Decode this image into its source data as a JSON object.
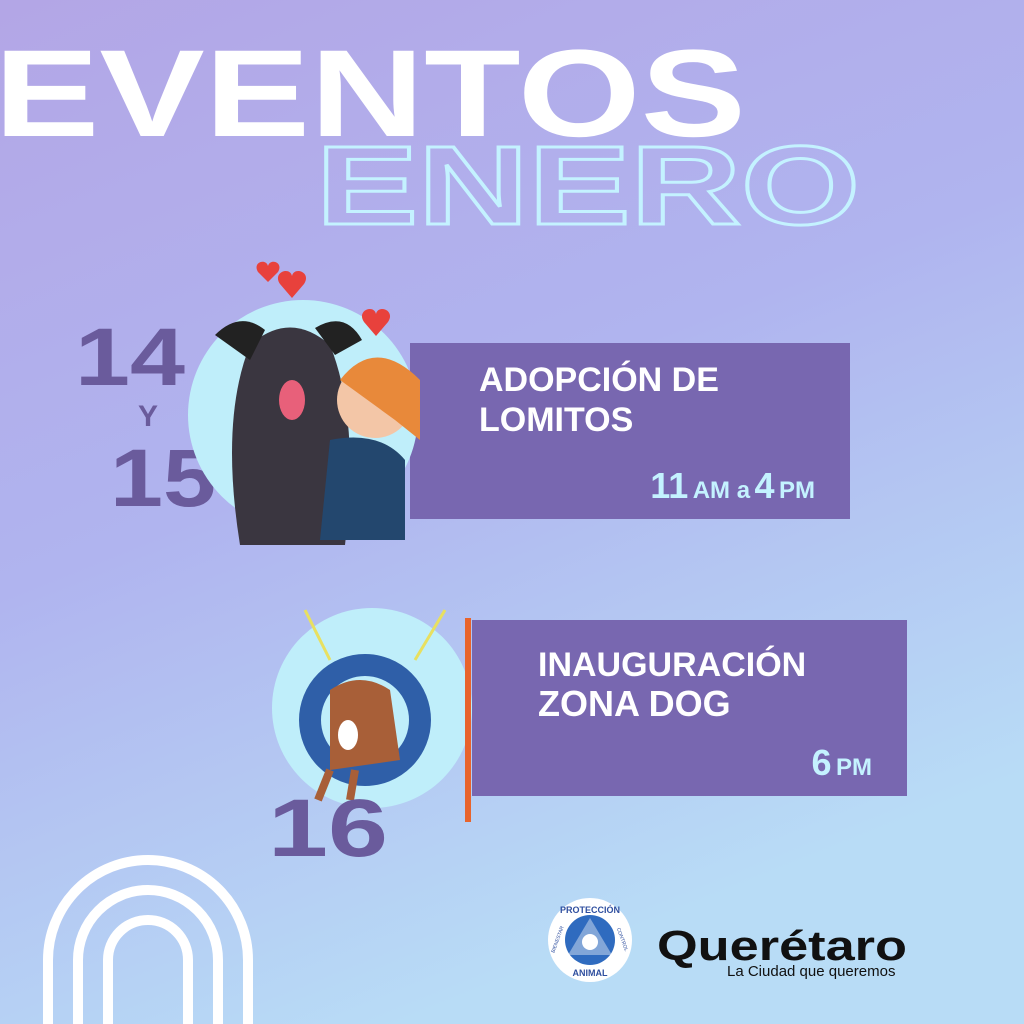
{
  "header": {
    "title": "EVENTOS",
    "subtitle": "ENERO"
  },
  "events": [
    {
      "date": [
        "14",
        "Y",
        "15"
      ],
      "title": [
        "ADOPCIÓN DE",
        "LOMITOS"
      ],
      "time": [
        "11",
        "AM a",
        "4",
        "PM"
      ]
    },
    {
      "date": [
        "16"
      ],
      "title": [
        "INAUGURACIÓN",
        "ZONA DOG"
      ],
      "time": [
        "6",
        "PM"
      ]
    }
  ],
  "logos": {
    "badge": {
      "top": "PROTECCIÓN",
      "bottom": "ANIMAL",
      "left": "BIENESTAR",
      "right": "CONTROL"
    },
    "brand": {
      "name": "Querétaro",
      "tagline": "La Ciudad que queremos"
    }
  }
}
